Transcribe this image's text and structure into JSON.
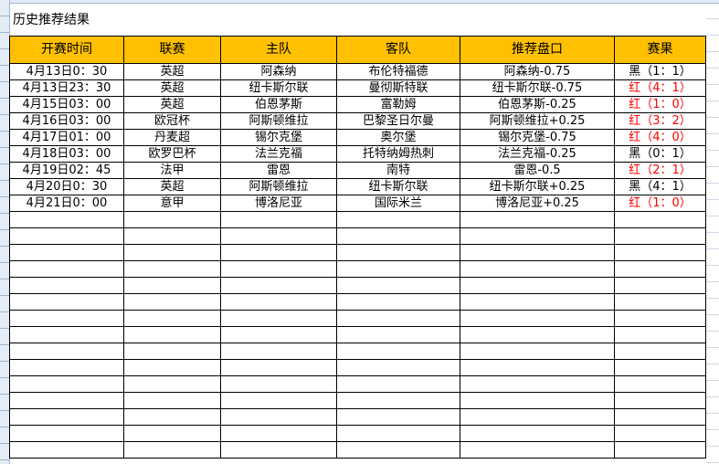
{
  "title": "历史推荐结果",
  "colors": {
    "header_bg": "#ffc000",
    "win": "#ff0000",
    "loss": "#000000"
  },
  "columns": [
    "开赛时间",
    "联赛",
    "主队",
    "客队",
    "推荐盘口",
    "赛果"
  ],
  "rows": [
    {
      "time": "4月13日0：30",
      "league": "英超",
      "home": "阿森纳",
      "away": "布伦特福德",
      "pick": "阿森纳-0.75",
      "result": "黑（1：1）",
      "win": false
    },
    {
      "time": "4月13日23：30",
      "league": "英超",
      "home": "纽卡斯尔联",
      "away": "曼彻斯特联",
      "pick": "纽卡斯尔联-0.75",
      "result": "红（4：1）",
      "win": true
    },
    {
      "time": "4月15日03：00",
      "league": "英超",
      "home": "伯恩茅斯",
      "away": "富勒姆",
      "pick": "伯恩茅斯-0.25",
      "result": "红（1：0）",
      "win": true
    },
    {
      "time": "4月16日03：00",
      "league": "欧冠杯",
      "home": "阿斯顿维拉",
      "away": "巴黎圣日尔曼",
      "pick": "阿斯顿维拉+0.25",
      "result": "红（3：2）",
      "win": true
    },
    {
      "time": "4月17日01：00",
      "league": "丹麦超",
      "home": "锡尔克堡",
      "away": "奥尔堡",
      "pick": "锡尔克堡-0.75",
      "result": "红（4：0）",
      "win": true
    },
    {
      "time": "4月18日03：00",
      "league": "欧罗巴杯",
      "home": "法兰克福",
      "away": "托特纳姆热刺",
      "pick": "法兰克福-0.25",
      "result": "黑（0：1）",
      "win": false
    },
    {
      "time": "4月19日02：45",
      "league": "法甲",
      "home": "雷恩",
      "away": "南特",
      "pick": "雷恩-0.5",
      "result": "红（2：1）",
      "win": true
    },
    {
      "time": "4月20日0：30",
      "league": "英超",
      "home": "阿斯顿维拉",
      "away": "纽卡斯尔联",
      "pick": "纽卡斯尔联+0.25",
      "result": "黑（4：1）",
      "win": false
    },
    {
      "time": "4月21日0：00",
      "league": "意甲",
      "home": "博洛尼亚",
      "away": "国际米兰",
      "pick": "博洛尼亚+0.25",
      "result": "红（1：0）",
      "win": true
    }
  ]
}
